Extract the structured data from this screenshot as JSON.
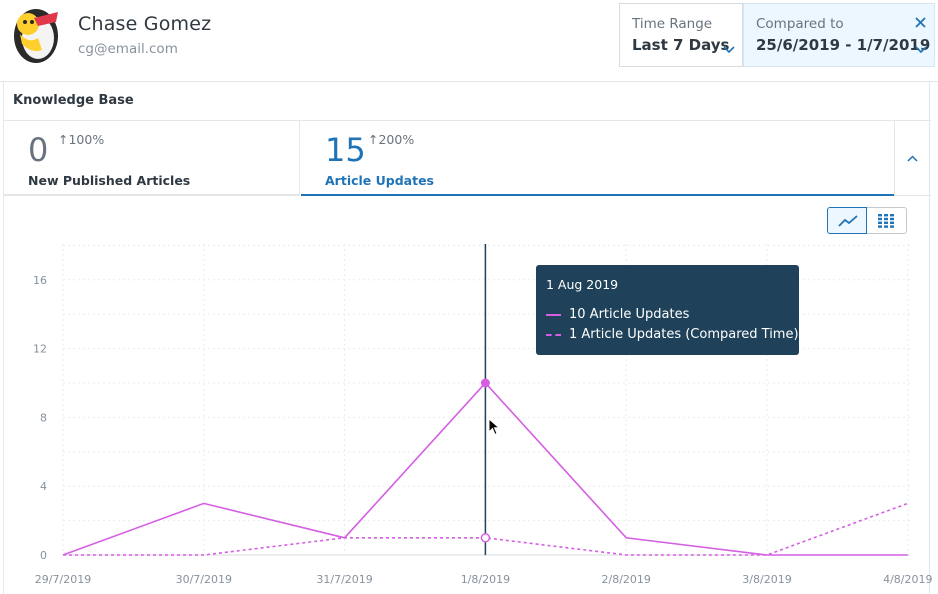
{
  "user": {
    "name": "Chase Gomez",
    "email": "cg@email.com"
  },
  "filters": {
    "time_range": {
      "label": "Time Range",
      "value": "Last 7 Days"
    },
    "compared_to": {
      "label": "Compared to",
      "value": "25/6/2019 - 1/7/2019"
    }
  },
  "panel": {
    "title": "Knowledge Base"
  },
  "metrics": [
    {
      "value": "0",
      "change": "100%",
      "label": "New Published Articles"
    },
    {
      "value": "15",
      "change": "200%",
      "label": "Article Updates"
    }
  ],
  "tooltip": {
    "date": "1 Aug 2019",
    "primary": "10 Article Updates",
    "compared": "1 Article Updates (Compared Time)"
  },
  "colors": {
    "accent": "#1f73b7",
    "series": "#d55ee3",
    "tooltip_bg": "#1f425a"
  },
  "chart_data": {
    "type": "line",
    "categories": [
      "29/7/2019",
      "30/7/2019",
      "31/7/2019",
      "1/8/2019",
      "2/8/2019",
      "3/8/2019",
      "4/8/2019"
    ],
    "series": [
      {
        "name": "Article Updates",
        "style": "solid",
        "values": [
          0,
          3,
          1,
          10,
          1,
          0,
          0
        ]
      },
      {
        "name": "Article Updates (Compared Time)",
        "style": "dashed",
        "values": [
          0,
          0,
          1,
          1,
          0,
          0,
          3
        ]
      }
    ],
    "yticks": [
      0,
      4,
      8,
      12,
      16
    ],
    "ylim": [
      0,
      18
    ],
    "highlight_index": 3,
    "grid": true
  }
}
